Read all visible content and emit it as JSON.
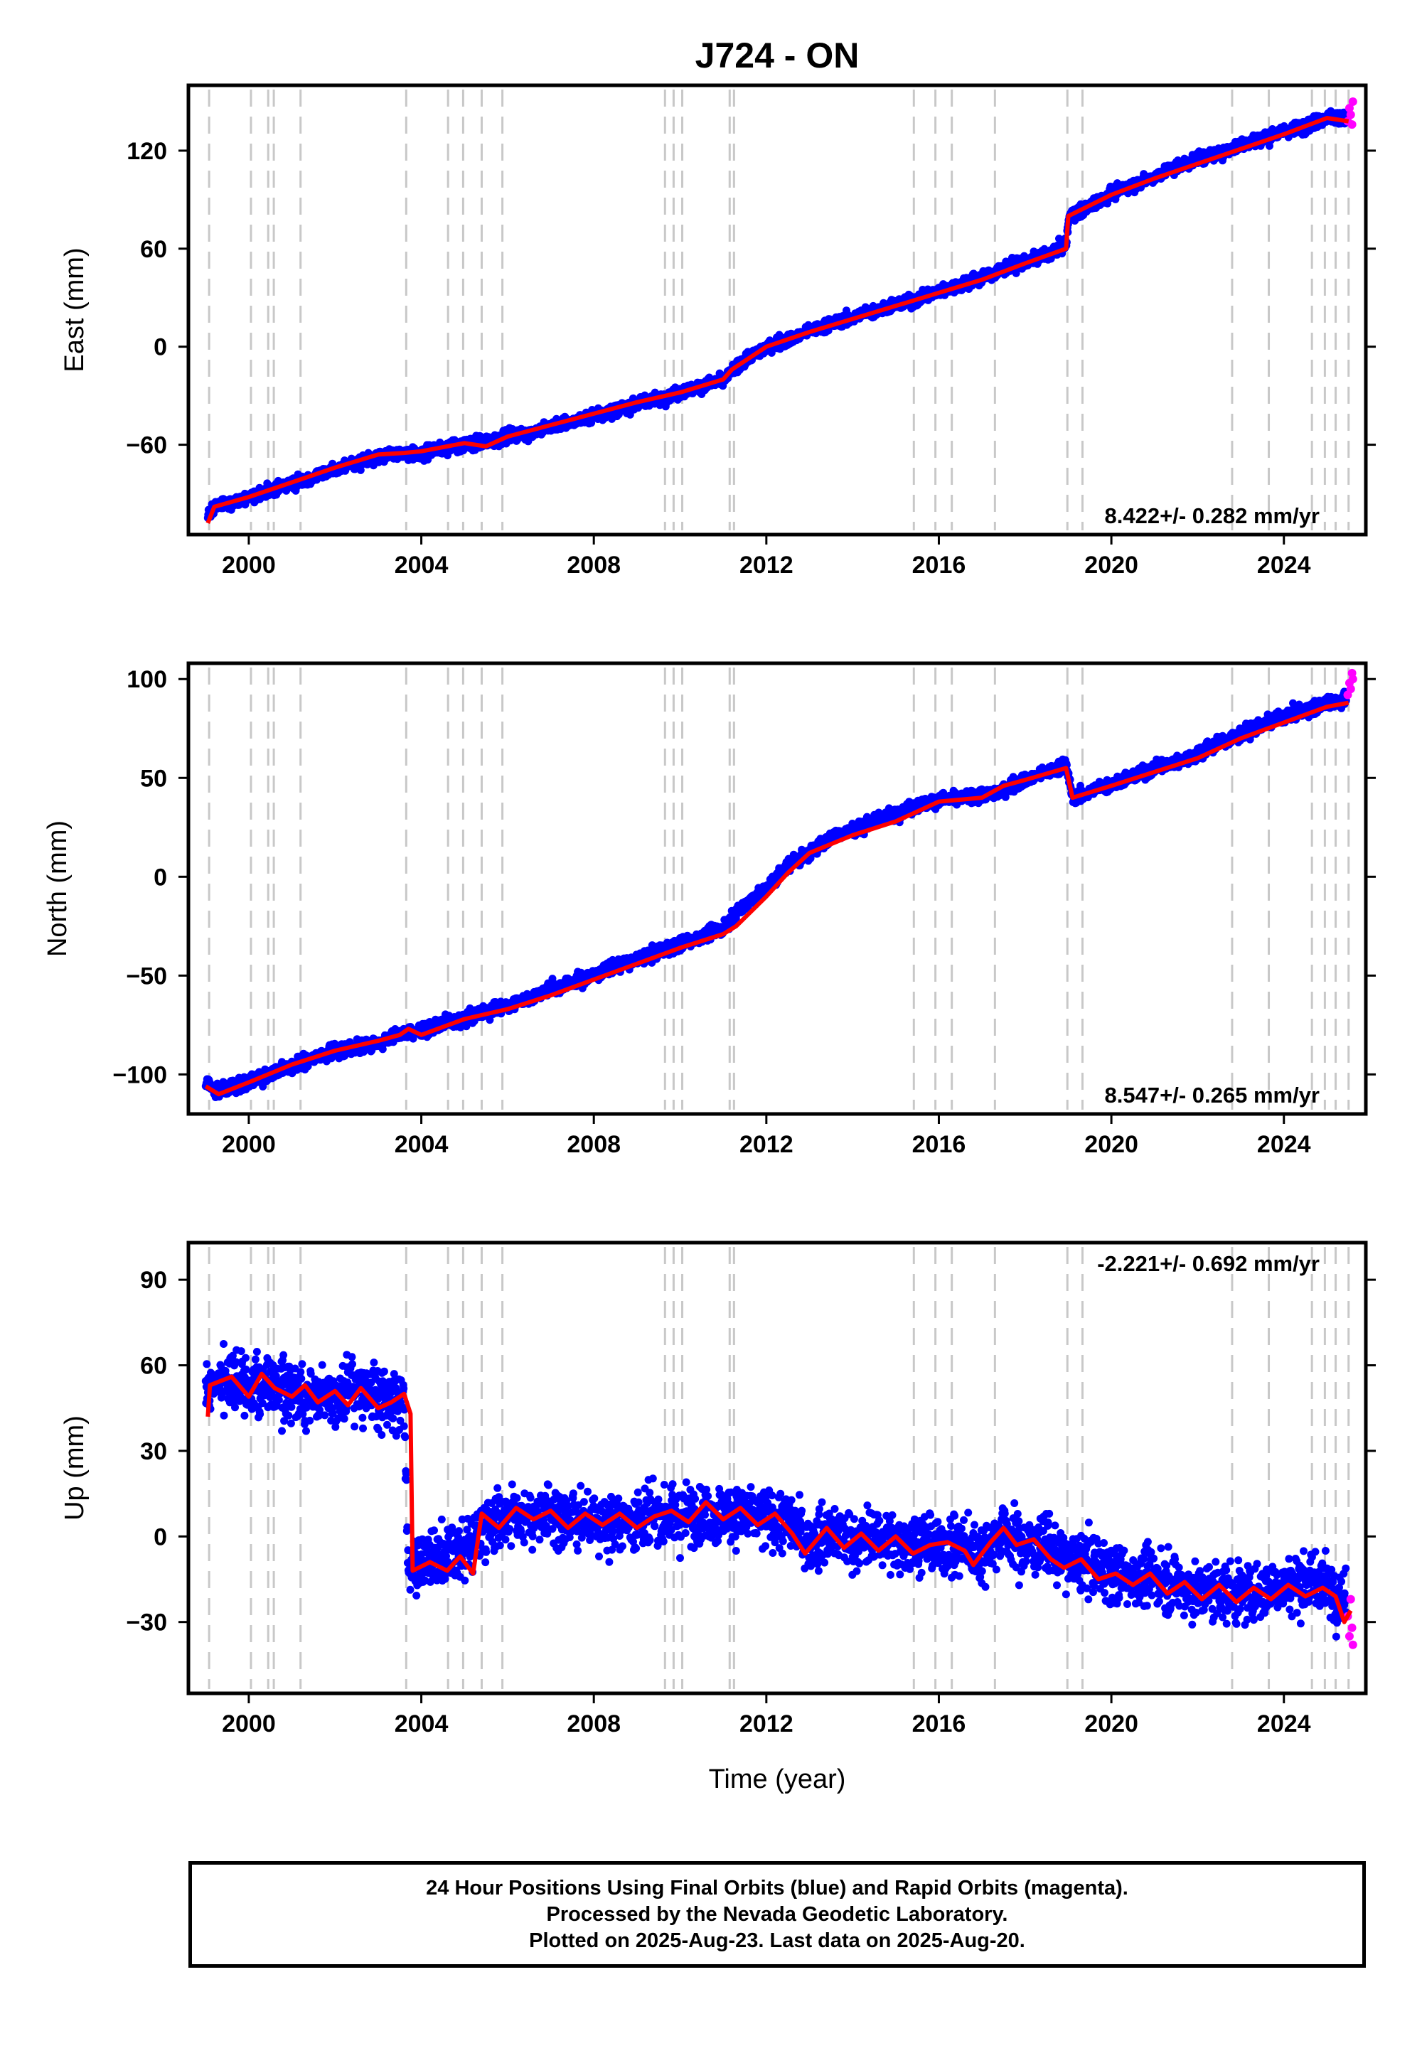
{
  "title": "J724 - ON",
  "xlabel": "Time (year)",
  "footer": {
    "line1": "24 Hour Positions Using Final Orbits (blue) and Rapid Orbits (magenta).",
    "line2": "Processed by the Nevada Geodetic Laboratory.",
    "line3": "Plotted on 2025-Aug-23. Last data on 2025-Aug-20."
  },
  "colors": {
    "final_orbits": "#0000ff",
    "rapid_orbits": "#ff00ff",
    "model_fit": "#ff0000",
    "event_lines": "#c8c8c8"
  },
  "chart_data": [
    {
      "type": "scatter",
      "ylabel": "East (mm)",
      "xlim": [
        1998.6,
        2025.9
      ],
      "ylim": [
        -115,
        160
      ],
      "xticks": [
        2000,
        2004,
        2008,
        2012,
        2016,
        2020,
        2024
      ],
      "yticks": [
        -60,
        0,
        60,
        120
      ],
      "rate": "8.422+/- 0.282 mm/yr",
      "rate_position": "bottom-right",
      "event_lines": [
        1999.08,
        2000.05,
        2000.45,
        2000.58,
        2001.2,
        2003.65,
        2004.62,
        2004.97,
        2005.4,
        2005.88,
        2009.65,
        2009.85,
        2010.05,
        2011.15,
        2011.25,
        2015.42,
        2015.92,
        2016.3,
        2017.3,
        2018.98,
        2019.33,
        2022.8,
        2023.65,
        2024.65,
        2024.95,
        2025.2,
        2025.5
      ],
      "series": [
        {
          "name": "Final Orbits",
          "noise": 3.2,
          "x": [
            1999.05,
            1999.2,
            1999.6,
            2000.0,
            2000.5,
            2001.0,
            2001.5,
            2002.0,
            2002.5,
            2003.0,
            2003.5,
            2004.0,
            2004.5,
            2005.0,
            2005.5,
            2006.0,
            2006.5,
            2007.0,
            2007.5,
            2008.0,
            2008.5,
            2009.0,
            2009.5,
            2010.0,
            2010.5,
            2011.0,
            2011.2,
            2011.5,
            2012.0,
            2012.5,
            2013.0,
            2013.5,
            2014.0,
            2014.5,
            2015.0,
            2015.5,
            2016.0,
            2016.5,
            2017.0,
            2017.5,
            2018.0,
            2018.5,
            2018.95,
            2019.02,
            2019.5,
            2020.0,
            2020.5,
            2021.0,
            2021.5,
            2022.0,
            2022.5,
            2023.0,
            2023.5,
            2024.0,
            2024.5,
            2025.0,
            2025.45
          ],
          "y": [
            -104,
            -98,
            -96,
            -92,
            -88,
            -84,
            -80,
            -75,
            -71,
            -67,
            -66,
            -65,
            -62,
            -60,
            -58,
            -55,
            -53,
            -49,
            -46,
            -42,
            -39,
            -35,
            -32,
            -28,
            -24,
            -20,
            -15,
            -8,
            0,
            4,
            10,
            14,
            18,
            22,
            26,
            29,
            34,
            38,
            42,
            48,
            52,
            56,
            62,
            80,
            86,
            94,
            99,
            104,
            110,
            115,
            118,
            124,
            127,
            132,
            135,
            140,
            141
          ]
        },
        {
          "name": "Rapid Orbits",
          "x": [
            2025.48,
            2025.52,
            2025.55,
            2025.58,
            2025.6
          ],
          "y": [
            138,
            146,
            142,
            136,
            150
          ]
        },
        {
          "name": "Model",
          "x": [
            1999.05,
            1999.2,
            2000.0,
            2001.0,
            2002.0,
            2003.0,
            2003.6,
            2004.0,
            2005.0,
            2005.5,
            2006.0,
            2007.0,
            2008.0,
            2009.0,
            2010.0,
            2011.0,
            2011.2,
            2012.0,
            2013.0,
            2014.0,
            2015.0,
            2016.0,
            2017.0,
            2018.0,
            2018.95,
            2019.0,
            2020.0,
            2021.0,
            2022.0,
            2023.0,
            2024.0,
            2025.0,
            2025.5
          ],
          "y": [
            -108,
            -98,
            -92,
            -83,
            -74,
            -66,
            -65,
            -64,
            -59,
            -61,
            -55,
            -48,
            -41,
            -34,
            -28,
            -20,
            -14,
            0,
            9,
            17,
            25,
            33,
            41,
            51,
            60,
            80,
            93,
            103,
            112,
            121,
            130,
            140,
            138
          ]
        }
      ]
    },
    {
      "type": "scatter",
      "ylabel": "North (mm)",
      "xlim": [
        1998.6,
        2025.9
      ],
      "ylim": [
        -120,
        108
      ],
      "xticks": [
        2000,
        2004,
        2008,
        2012,
        2016,
        2020,
        2024
      ],
      "yticks": [
        -100,
        -50,
        0,
        50,
        100
      ],
      "rate": "8.547+/- 0.265 mm/yr",
      "rate_position": "bottom-right",
      "event_lines": [
        1999.08,
        2000.05,
        2000.45,
        2000.58,
        2001.2,
        2003.65,
        2004.62,
        2004.97,
        2005.4,
        2005.88,
        2009.65,
        2009.85,
        2010.05,
        2011.15,
        2011.25,
        2015.42,
        2015.92,
        2016.3,
        2017.3,
        2018.98,
        2019.33,
        2022.8,
        2023.65,
        2024.65,
        2024.95,
        2025.2,
        2025.5
      ],
      "series": [
        {
          "name": "Final Orbits",
          "noise": 2.8,
          "x": [
            1999.0,
            1999.3,
            2000.0,
            2000.5,
            2001.0,
            2001.5,
            2002.0,
            2002.5,
            2003.0,
            2003.5,
            2004.0,
            2004.5,
            2005.0,
            2005.5,
            2006.0,
            2006.5,
            2007.0,
            2007.5,
            2008.0,
            2008.5,
            2009.0,
            2009.5,
            2010.0,
            2010.5,
            2011.0,
            2011.5,
            2012.0,
            2012.5,
            2013.0,
            2013.5,
            2014.0,
            2014.5,
            2015.0,
            2015.5,
            2016.0,
            2016.5,
            2017.0,
            2017.5,
            2018.0,
            2018.5,
            2018.95,
            2019.1,
            2019.5,
            2020.0,
            2020.5,
            2021.0,
            2021.5,
            2022.0,
            2022.5,
            2023.0,
            2023.5,
            2024.0,
            2024.5,
            2025.0,
            2025.45
          ],
          "y": [
            -104,
            -108,
            -104,
            -100,
            -96,
            -92,
            -88,
            -86,
            -84,
            -80,
            -78,
            -74,
            -72,
            -68,
            -65,
            -61,
            -57,
            -53,
            -50,
            -45,
            -42,
            -38,
            -34,
            -30,
            -26,
            -14,
            -6,
            6,
            12,
            20,
            24,
            28,
            32,
            36,
            39,
            40,
            41,
            44,
            49,
            53,
            57,
            40,
            43,
            47,
            51,
            55,
            58,
            62,
            68,
            72,
            77,
            81,
            84,
            88,
            90
          ]
        },
        {
          "name": "Rapid Orbits",
          "x": [
            2025.48,
            2025.52,
            2025.55,
            2025.58,
            2025.6
          ],
          "y": [
            92,
            98,
            95,
            103,
            100
          ]
        },
        {
          "name": "Model",
          "x": [
            1999.0,
            1999.3,
            2000.0,
            2001.0,
            2002.0,
            2003.0,
            2003.5,
            2003.7,
            2004.0,
            2005.0,
            2006.0,
            2007.0,
            2008.0,
            2009.0,
            2010.0,
            2011.0,
            2011.3,
            2012.0,
            2012.5,
            2013.0,
            2014.0,
            2015.0,
            2015.5,
            2016.0,
            2017.0,
            2017.5,
            2018.0,
            2018.95,
            2019.1,
            2020.0,
            2021.0,
            2022.0,
            2023.0,
            2024.0,
            2025.0,
            2025.5
          ],
          "y": [
            -106,
            -110,
            -104,
            -95,
            -88,
            -83,
            -80,
            -77,
            -80,
            -72,
            -67,
            -60,
            -52,
            -44,
            -36,
            -29,
            -25,
            -10,
            2,
            12,
            21,
            28,
            33,
            38,
            40,
            46,
            49,
            55,
            40,
            46,
            53,
            60,
            70,
            78,
            86,
            88
          ]
        }
      ]
    },
    {
      "type": "scatter",
      "ylabel": "Up (mm)",
      "xlim": [
        1998.6,
        2025.9
      ],
      "ylim": [
        -55,
        103
      ],
      "xticks": [
        2000,
        2004,
        2008,
        2012,
        2016,
        2020,
        2024
      ],
      "yticks": [
        -30,
        0,
        30,
        60,
        90
      ],
      "rate": "-2.221+/- 0.692 mm/yr",
      "rate_position": "top-right",
      "event_lines": [
        1999.08,
        2000.05,
        2000.45,
        2000.58,
        2001.2,
        2003.65,
        2004.62,
        2004.97,
        2005.4,
        2005.88,
        2009.65,
        2009.85,
        2010.05,
        2011.15,
        2011.25,
        2015.42,
        2015.92,
        2016.3,
        2017.3,
        2018.98,
        2019.33,
        2022.8,
        2023.65,
        2024.65,
        2024.95,
        2025.2,
        2025.5
      ],
      "series": [
        {
          "name": "Final Orbits",
          "noise": 8.5,
          "x": [
            1999.0,
            1999.5,
            2000.0,
            2000.5,
            2001.0,
            2001.5,
            2002.0,
            2002.5,
            2003.0,
            2003.5,
            2003.6,
            2003.7,
            2004.0,
            2004.5,
            2005.0,
            2005.5,
            2006.0,
            2006.5,
            2007.0,
            2007.5,
            2008.0,
            2008.5,
            2009.0,
            2009.5,
            2010.0,
            2010.5,
            2011.0,
            2011.5,
            2012.0,
            2012.5,
            2013.0,
            2013.5,
            2014.0,
            2014.5,
            2015.0,
            2015.5,
            2016.0,
            2016.5,
            2017.0,
            2017.5,
            2018.0,
            2018.5,
            2019.0,
            2019.5,
            2020.0,
            2020.5,
            2021.0,
            2021.5,
            2022.0,
            2022.5,
            2023.0,
            2023.5,
            2024.0,
            2024.5,
            2025.0,
            2025.45
          ],
          "y": [
            52,
            55,
            52,
            54,
            50,
            51,
            49,
            52,
            48,
            48,
            48,
            -10,
            -10,
            -8,
            -6,
            5,
            8,
            7,
            6,
            6,
            5,
            5,
            6,
            7,
            7,
            8,
            8,
            8,
            6,
            5,
            -2,
            2,
            -2,
            0,
            -3,
            -1,
            -4,
            -3,
            -6,
            2,
            -4,
            -2,
            -9,
            -9,
            -13,
            -14,
            -14,
            -17,
            -19,
            -19,
            -20,
            -19,
            -17,
            -16,
            -17,
            -22
          ]
        },
        {
          "name": "Rapid Orbits",
          "x": [
            2025.48,
            2025.52,
            2025.55,
            2025.58,
            2025.6
          ],
          "y": [
            -28,
            -35,
            -22,
            -32,
            -38
          ]
        },
        {
          "name": "Model",
          "x": [
            1999.05,
            1999.1,
            1999.6,
            2000.0,
            2000.3,
            2000.6,
            2001.0,
            2001.3,
            2001.6,
            2002.0,
            2002.3,
            2002.6,
            2003.0,
            2003.3,
            2003.6,
            2003.75,
            2003.8,
            2004.2,
            2004.6,
            2004.9,
            2005.2,
            2005.4,
            2005.8,
            2006.2,
            2006.6,
            2007.0,
            2007.4,
            2007.8,
            2008.2,
            2008.6,
            2009.0,
            2009.4,
            2009.8,
            2010.2,
            2010.6,
            2011.0,
            2011.4,
            2011.8,
            2012.2,
            2012.6,
            2012.9,
            2013.4,
            2013.8,
            2014.2,
            2014.6,
            2015.0,
            2015.4,
            2015.8,
            2016.2,
            2016.6,
            2016.8,
            2017.2,
            2017.5,
            2017.8,
            2018.2,
            2018.6,
            2018.9,
            2019.3,
            2019.7,
            2020.1,
            2020.5,
            2020.9,
            2021.3,
            2021.7,
            2022.1,
            2022.5,
            2022.9,
            2023.3,
            2023.7,
            2024.1,
            2024.5,
            2024.9,
            2025.2,
            2025.4,
            2025.55
          ],
          "y": [
            42,
            53,
            56,
            49,
            57,
            52,
            49,
            53,
            47,
            51,
            46,
            52,
            45,
            47,
            50,
            43,
            -12,
            -9,
            -12,
            -7,
            -13,
            8,
            3,
            10,
            6,
            9,
            3,
            8,
            4,
            8,
            3,
            7,
            9,
            5,
            12,
            6,
            10,
            4,
            8,
            1,
            -6,
            3,
            -4,
            1,
            -5,
            0,
            -6,
            -3,
            -2,
            -5,
            -10,
            -2,
            3,
            -3,
            -1,
            -8,
            -11,
            -8,
            -15,
            -13,
            -17,
            -13,
            -20,
            -16,
            -22,
            -17,
            -23,
            -18,
            -22,
            -17,
            -21,
            -18,
            -21,
            -30,
            -26
          ]
        }
      ]
    }
  ]
}
